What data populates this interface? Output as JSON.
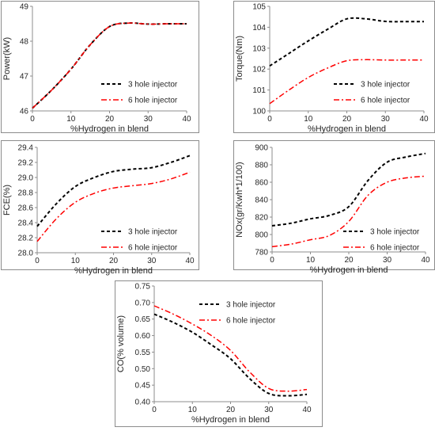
{
  "figure": {
    "legend_labels": [
      "3 hole injector",
      "6 hole injector"
    ],
    "series_colors": [
      "#000000",
      "#ff0000"
    ],
    "series_dashes": [
      "4,3",
      "7,3,2,3"
    ]
  },
  "chart_data": [
    {
      "type": "line",
      "title": "",
      "xlabel": "%Hydrogen in blend",
      "ylabel": "Power(kW)",
      "xlim": [
        0,
        40
      ],
      "ylim": [
        46,
        49
      ],
      "xticks": [
        "0",
        "10",
        "20",
        "30",
        "40"
      ],
      "yticks": [
        "46",
        "47",
        "48",
        "49"
      ],
      "grid": false,
      "legend_position": "right-center",
      "series": [
        {
          "name": "3 hole injector",
          "points": [
            [
              0,
              46.08
            ],
            [
              5,
              46.6
            ],
            [
              10,
              47.2
            ],
            [
              15,
              47.9
            ],
            [
              20,
              48.42
            ],
            [
              25,
              48.52
            ],
            [
              30,
              48.49
            ],
            [
              35,
              48.5
            ],
            [
              40,
              48.5
            ]
          ]
        },
        {
          "name": "6 hole injector",
          "points": [
            [
              0,
              46.08
            ],
            [
              5,
              46.6
            ],
            [
              10,
              47.2
            ],
            [
              15,
              47.9
            ],
            [
              20,
              48.42
            ],
            [
              25,
              48.52
            ],
            [
              30,
              48.49
            ],
            [
              35,
              48.5
            ],
            [
              40,
              48.5
            ]
          ]
        }
      ]
    },
    {
      "type": "line",
      "title": "",
      "xlabel": "%Hydrogen in blend",
      "ylabel": "Torque(Nm)",
      "xlim": [
        0,
        40
      ],
      "ylim": [
        100,
        105
      ],
      "xticks": [
        "0",
        "10",
        "20",
        "30",
        "40"
      ],
      "yticks": [
        "100",
        "101",
        "102",
        "103",
        "104",
        "105"
      ],
      "grid": false,
      "legend_position": "right-center",
      "series": [
        {
          "name": "3 hole injector",
          "points": [
            [
              0,
              102.15
            ],
            [
              5,
              102.75
            ],
            [
              10,
              103.35
            ],
            [
              15,
              103.9
            ],
            [
              20,
              104.4
            ],
            [
              25,
              104.4
            ],
            [
              30,
              104.28
            ],
            [
              35,
              104.27
            ],
            [
              40,
              104.27
            ]
          ]
        },
        {
          "name": "6 hole injector",
          "points": [
            [
              0,
              100.35
            ],
            [
              5,
              101.0
            ],
            [
              10,
              101.6
            ],
            [
              15,
              102.05
            ],
            [
              20,
              102.4
            ],
            [
              25,
              102.45
            ],
            [
              30,
              102.43
            ],
            [
              35,
              102.43
            ],
            [
              40,
              102.43
            ]
          ]
        }
      ]
    },
    {
      "type": "line",
      "title": "",
      "xlabel": "%Hydrogen in blend",
      "ylabel": "FCE(%)",
      "xlim": [
        0,
        40
      ],
      "ylim": [
        28.0,
        29.4
      ],
      "xticks": [
        "0",
        "10",
        "20",
        "30",
        "40"
      ],
      "yticks": [
        "28.0",
        "28.2",
        "28.4",
        "28.6",
        "28.8",
        "29.0",
        "29.2",
        "29.4"
      ],
      "grid": false,
      "legend_position": "right-bottom",
      "series": [
        {
          "name": "3 hole injector",
          "points": [
            [
              0,
              28.35
            ],
            [
              5,
              28.65
            ],
            [
              10,
              28.88
            ],
            [
              15,
              29.0
            ],
            [
              20,
              29.08
            ],
            [
              25,
              29.11
            ],
            [
              30,
              29.13
            ],
            [
              35,
              29.2
            ],
            [
              40,
              29.29
            ]
          ]
        },
        {
          "name": "6 hole injector",
          "points": [
            [
              0,
              28.15
            ],
            [
              5,
              28.45
            ],
            [
              10,
              28.67
            ],
            [
              15,
              28.79
            ],
            [
              20,
              28.86
            ],
            [
              25,
              28.89
            ],
            [
              30,
              28.92
            ],
            [
              35,
              28.98
            ],
            [
              40,
              29.07
            ]
          ]
        }
      ]
    },
    {
      "type": "line",
      "title": "",
      "xlabel": "%Hydrogen in blend",
      "ylabel": "NOx(gr/Kwh*1/100)",
      "xlim": [
        0,
        40
      ],
      "ylim": [
        780,
        900
      ],
      "xticks": [
        "0",
        "10",
        "20",
        "30",
        "40"
      ],
      "yticks": [
        "780",
        "800",
        "820",
        "840",
        "860",
        "880",
        "900"
      ],
      "grid": false,
      "legend_position": "right-bottom",
      "series": [
        {
          "name": "3 hole injector",
          "points": [
            [
              0,
              810
            ],
            [
              5,
              813
            ],
            [
              10,
              818
            ],
            [
              15,
              822
            ],
            [
              20,
              832
            ],
            [
              25,
              862
            ],
            [
              30,
              883
            ],
            [
              35,
              889
            ],
            [
              40,
              893
            ]
          ]
        },
        {
          "name": "6 hole injector",
          "points": [
            [
              0,
              786
            ],
            [
              5,
              789
            ],
            [
              10,
              794
            ],
            [
              15,
              799
            ],
            [
              20,
              815
            ],
            [
              25,
              845
            ],
            [
              30,
              860
            ],
            [
              35,
              865
            ],
            [
              40,
              867
            ]
          ]
        }
      ]
    },
    {
      "type": "line",
      "title": "",
      "xlabel": "%Hydrogen in blend",
      "ylabel": "CO(% volume)",
      "xlim": [
        0,
        40
      ],
      "ylim": [
        0.4,
        0.75
      ],
      "xticks": [
        "0",
        "10",
        "20",
        "30",
        "40"
      ],
      "yticks": [
        "0.40",
        "0.45",
        "0.50",
        "0.55",
        "0.60",
        "0.65",
        "0.70",
        "0.75"
      ],
      "grid": false,
      "legend_position": "top-right",
      "series": [
        {
          "name": "3 hole injector",
          "points": [
            [
              0,
              0.665
            ],
            [
              5,
              0.64
            ],
            [
              10,
              0.61
            ],
            [
              15,
              0.572
            ],
            [
              20,
              0.53
            ],
            [
              25,
              0.47
            ],
            [
              30,
              0.425
            ],
            [
              35,
              0.418
            ],
            [
              40,
              0.422
            ]
          ]
        },
        {
          "name": "6 hole injector",
          "points": [
            [
              0,
              0.69
            ],
            [
              5,
              0.665
            ],
            [
              10,
              0.635
            ],
            [
              15,
              0.6
            ],
            [
              20,
              0.555
            ],
            [
              25,
              0.49
            ],
            [
              30,
              0.44
            ],
            [
              35,
              0.432
            ],
            [
              40,
              0.437
            ]
          ]
        }
      ]
    }
  ]
}
